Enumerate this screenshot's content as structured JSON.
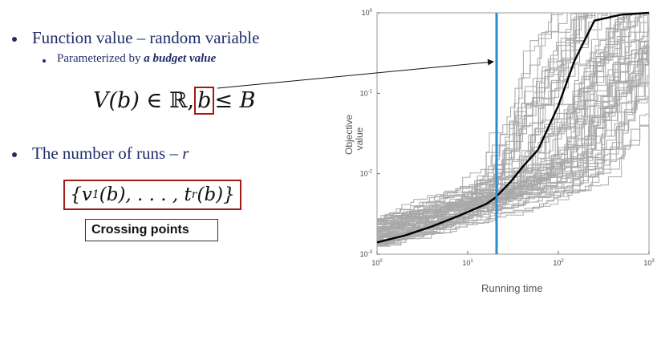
{
  "bullets": {
    "b1_text": "Function value – random variable",
    "b1_sub_prefix": "Parameterized by ",
    "b1_sub_em": "a budget value",
    "b2_prefix": "The number of runs – ",
    "b2_var": "r"
  },
  "equation1": {
    "lhs": "V(b) ∈ ",
    "set": "ℝ",
    "comma": ",",
    "boxed": "b",
    "rhs": "≤ B"
  },
  "equation2": "{v1(b), . . . , tr(b)}",
  "equation2_parts": {
    "open": "{v",
    "sub1": "1",
    "mid": "(b), . . . , t",
    "sub2": "r",
    "close": "(b)}"
  },
  "crossing_label": "Crossing points",
  "chart": {
    "ylabel": "Objective value",
    "xlabel": "Running time",
    "xticks": [
      "10",
      "10",
      "10",
      "10"
    ],
    "xtick_exps": [
      "0",
      "1",
      "2",
      "3"
    ],
    "yticks": [
      "10",
      "10",
      "10",
      "10"
    ],
    "ytick_exps": [
      "-3",
      "-2",
      "-1",
      "0"
    ],
    "colors": {
      "runs": "#a9a9a9",
      "mean": "#000000",
      "budget_line": "#2a8cc8",
      "box": "#a11a1a"
    }
  },
  "chart_data": {
    "type": "line",
    "xlabel": "Running time",
    "ylabel": "Objective value",
    "xscale": "log",
    "yscale": "log",
    "xlim": [
      1,
      1000
    ],
    "ylim": [
      0.001,
      1
    ],
    "budget_line_x": 20,
    "series": [
      {
        "x": [
          1,
          2,
          4,
          8,
          16,
          20,
          30,
          40,
          60,
          100,
          150,
          250,
          500,
          1000
        ],
        "values": [
          0.0014,
          0.0017,
          0.0022,
          0.003,
          0.0042,
          0.005,
          0.008,
          0.012,
          0.02,
          0.07,
          0.25,
          0.8,
          0.95,
          1.0
        ]
      }
    ]
  }
}
